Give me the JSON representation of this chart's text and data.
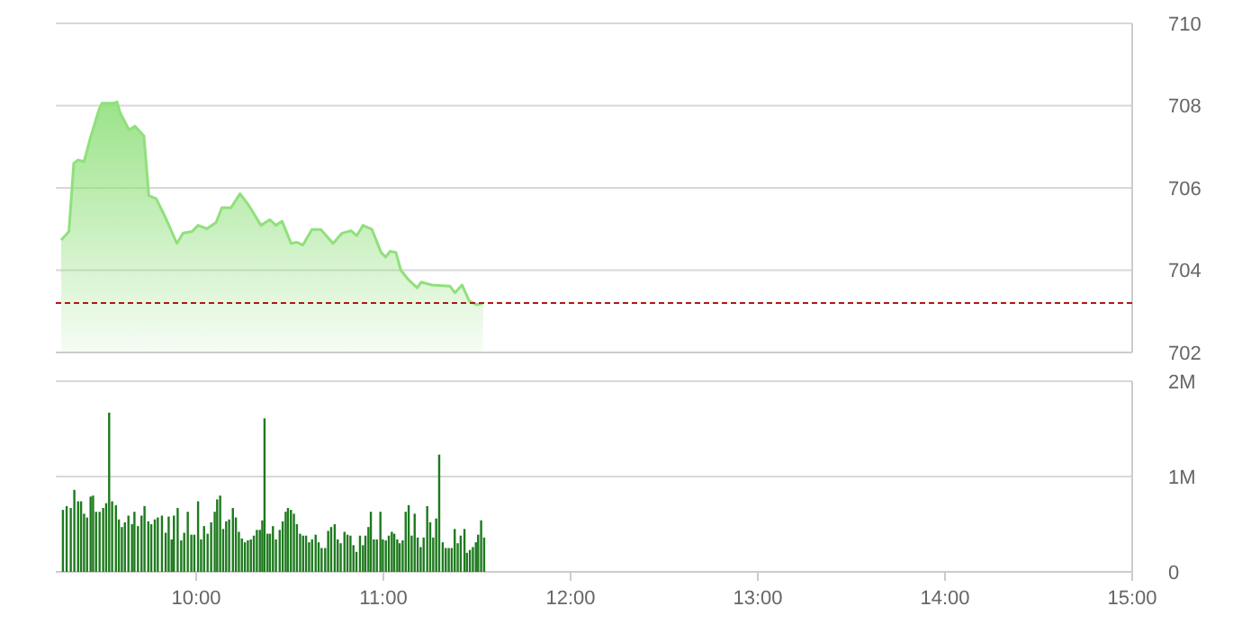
{
  "chart_data": [
    {
      "type": "area",
      "xlim": [
        9.25,
        15
      ],
      "ylim": [
        702,
        710
      ],
      "yticks": [
        702,
        704,
        706,
        708,
        710
      ],
      "grid": "y",
      "tick_labels": "y",
      "marker": "none",
      "line_style": "solid",
      "ref_lines": [
        {
          "axis": "y",
          "value": 703.2,
          "color": "#b01818",
          "line_style": "dashed"
        }
      ],
      "series": [
        {
          "color": "#90e07c",
          "x": [
            9.279,
            9.32,
            9.346,
            9.368,
            9.401,
            9.433,
            9.481,
            9.497,
            9.561,
            9.577,
            9.593,
            9.641,
            9.673,
            9.721,
            9.747,
            9.786,
            9.834,
            9.897,
            9.93,
            9.978,
            10.01,
            10.058,
            10.106,
            10.137,
            10.186,
            10.234,
            10.282,
            10.346,
            10.394,
            10.425,
            10.459,
            10.507,
            10.538,
            10.57,
            10.618,
            10.666,
            10.731,
            10.779,
            10.827,
            10.858,
            10.891,
            10.939,
            10.988,
            11.012,
            11.036,
            11.067,
            11.093,
            11.132,
            11.18,
            11.202,
            11.26,
            11.356,
            11.382,
            11.42,
            11.459,
            11.5,
            11.532
          ],
          "values": [
            704.73,
            704.94,
            706.6,
            706.68,
            706.64,
            707.19,
            707.91,
            708.06,
            708.06,
            708.09,
            707.84,
            707.41,
            707.5,
            707.26,
            705.81,
            705.74,
            705.3,
            704.65,
            704.9,
            704.94,
            705.09,
            705.01,
            705.16,
            705.52,
            705.52,
            705.86,
            705.57,
            705.09,
            705.23,
            705.09,
            705.19,
            704.65,
            704.68,
            704.61,
            704.99,
            704.99,
            704.65,
            704.9,
            704.96,
            704.84,
            705.09,
            704.99,
            704.43,
            704.32,
            704.46,
            704.43,
            704.0,
            703.78,
            703.57,
            703.71,
            703.64,
            703.61,
            703.45,
            703.64,
            703.25,
            703.16,
            703.2
          ]
        }
      ]
    },
    {
      "type": "bar",
      "xlim": [
        9.25,
        15
      ],
      "xticks": [
        {
          "value": 10,
          "label": "10:00"
        },
        {
          "value": 11,
          "label": "11:00"
        },
        {
          "value": 12,
          "label": "12:00"
        },
        {
          "value": 13,
          "label": "13:00"
        },
        {
          "value": 14,
          "label": "14:00"
        },
        {
          "value": 15,
          "label": "15:00"
        }
      ],
      "ylim": [
        0,
        2
      ],
      "yticks": [
        0,
        {
          "value": 1,
          "label": "1M"
        },
        {
          "value": 2,
          "label": "2M"
        }
      ],
      "grid": "y",
      "series": [
        {
          "color": "#1e7a1e",
          "x": [
            9.288,
            9.308,
            9.33,
            9.349,
            9.369,
            9.385,
            9.401,
            9.417,
            9.436,
            9.449,
            9.465,
            9.484,
            9.503,
            9.519,
            9.535,
            9.551,
            9.571,
            9.587,
            9.603,
            9.619,
            9.638,
            9.657,
            9.67,
            9.689,
            9.708,
            9.724,
            9.744,
            9.76,
            9.779,
            9.795,
            9.817,
            9.837,
            9.853,
            9.869,
            9.881,
            9.901,
            9.92,
            9.936,
            9.955,
            9.974,
            9.99,
            10.01,
            10.026,
            10.042,
            10.061,
            10.08,
            10.099,
            10.112,
            10.128,
            10.144,
            10.16,
            10.176,
            10.196,
            10.212,
            10.228,
            10.244,
            10.26,
            10.276,
            10.292,
            10.308,
            10.324,
            10.34,
            10.353,
            10.365,
            10.381,
            10.394,
            10.41,
            10.426,
            10.446,
            10.462,
            10.478,
            10.49,
            10.506,
            10.522,
            10.538,
            10.555,
            10.571,
            10.587,
            10.603,
            10.619,
            10.638,
            10.654,
            10.67,
            10.689,
            10.705,
            10.721,
            10.74,
            10.756,
            10.772,
            10.792,
            10.808,
            10.824,
            10.84,
            10.856,
            10.875,
            10.891,
            10.904,
            10.92,
            10.933,
            10.949,
            10.965,
            10.984,
            10.997,
            11.013,
            11.029,
            11.045,
            11.058,
            11.074,
            11.087,
            11.103,
            11.119,
            11.135,
            11.151,
            11.167,
            11.183,
            11.199,
            11.215,
            11.234,
            11.25,
            11.266,
            11.282,
            11.298,
            11.317,
            11.333,
            11.349,
            11.365,
            11.381,
            11.397,
            11.413,
            11.433,
            11.446,
            11.462,
            11.478,
            11.494,
            11.506,
            11.522,
            11.538
          ],
          "values": [
            0.65,
            0.69,
            0.67,
            0.86,
            0.74,
            0.74,
            0.61,
            0.57,
            0.79,
            0.8,
            0.63,
            0.63,
            0.67,
            0.72,
            1.67,
            0.74,
            0.7,
            0.55,
            0.47,
            0.52,
            0.59,
            0.5,
            0.63,
            0.48,
            0.59,
            0.69,
            0.53,
            0.5,
            0.55,
            0.57,
            0.59,
            0.41,
            0.58,
            0.34,
            0.59,
            0.67,
            0.33,
            0.41,
            0.63,
            0.39,
            0.39,
            0.74,
            0.34,
            0.48,
            0.4,
            0.52,
            0.63,
            0.76,
            0.8,
            0.45,
            0.53,
            0.55,
            0.67,
            0.57,
            0.42,
            0.35,
            0.31,
            0.33,
            0.34,
            0.38,
            0.44,
            0.44,
            0.54,
            1.61,
            0.4,
            0.4,
            0.48,
            0.34,
            0.44,
            0.53,
            0.63,
            0.67,
            0.65,
            0.61,
            0.5,
            0.4,
            0.38,
            0.38,
            0.31,
            0.34,
            0.39,
            0.31,
            0.25,
            0.25,
            0.43,
            0.47,
            0.5,
            0.34,
            0.3,
            0.42,
            0.39,
            0.38,
            0.28,
            0.21,
            0.38,
            0.28,
            0.38,
            0.47,
            0.63,
            0.34,
            0.34,
            0.63,
            0.34,
            0.33,
            0.38,
            0.42,
            0.4,
            0.34,
            0.3,
            0.33,
            0.63,
            0.7,
            0.38,
            0.61,
            0.36,
            0.26,
            0.36,
            0.69,
            0.52,
            0.36,
            0.56,
            1.23,
            0.31,
            0.25,
            0.25,
            0.25,
            0.45,
            0.3,
            0.38,
            0.45,
            0.2,
            0.23,
            0.26,
            0.31,
            0.39,
            0.54,
            0.36
          ]
        }
      ]
    }
  ]
}
